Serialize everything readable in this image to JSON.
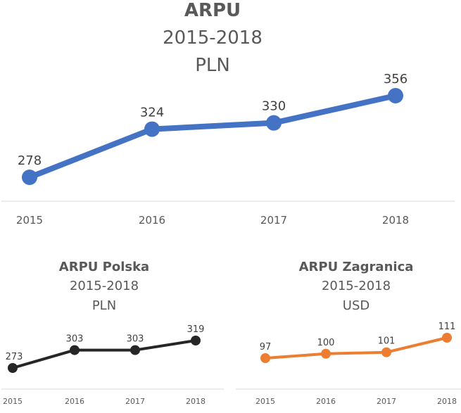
{
  "chart_data": [
    {
      "type": "line",
      "title": "ARPU",
      "subtitle_years": "2015-2018",
      "subtitle_unit": "PLN",
      "categories": [
        "2015",
        "2016",
        "2017",
        "2018"
      ],
      "values": [
        278,
        324,
        330,
        356
      ],
      "color": "#4472c4",
      "ylim": [
        230,
        370
      ],
      "grid": false,
      "legend": "none"
    },
    {
      "type": "line",
      "title": "ARPU Polska",
      "subtitle_years": "2015-2018",
      "subtitle_unit": "PLN",
      "categories": [
        "2015",
        "2016",
        "2017",
        "2018"
      ],
      "values": [
        273,
        303,
        303,
        319
      ],
      "color": "#262626",
      "ylim": [
        240,
        340
      ],
      "grid": false,
      "legend": "none"
    },
    {
      "type": "line",
      "title": "ARPU Zagranica",
      "subtitle_years": "2015-2018",
      "subtitle_unit": "USD",
      "categories": [
        "2015",
        "2016",
        "2017",
        "2018"
      ],
      "values": [
        97,
        100,
        101,
        111
      ],
      "color": "#ed7d31",
      "ylim": [
        85,
        118
      ],
      "grid": false,
      "legend": "none"
    }
  ]
}
